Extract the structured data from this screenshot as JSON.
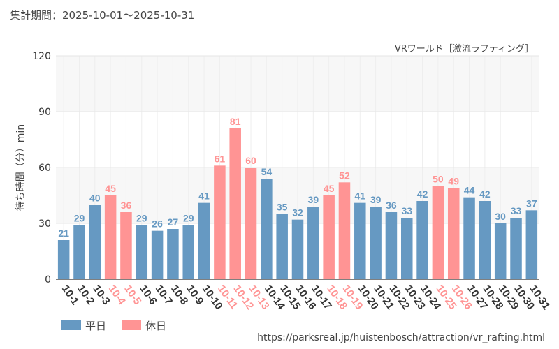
{
  "period_label": "集計期間：2025-10-01～2025-10-31",
  "attraction_label": "VRワールド［激流ラフティング］",
  "source_url": "https://parksreal.jp/huistenbosch/attraction/vr_rafting.html",
  "colors": {
    "weekday": "#6699c2",
    "holiday": "#ff9494",
    "grid": "#e6e6e6",
    "band": "#f7f7f7"
  },
  "chart_data": {
    "type": "bar",
    "title": "",
    "ylabel": "待ち時間（分）min",
    "xlabel": "",
    "ylim": [
      0,
      120
    ],
    "yticks": [
      0,
      30,
      60,
      90,
      120
    ],
    "categories": [
      "10-1",
      "10-2",
      "10-3",
      "10-4",
      "10-5",
      "10-6",
      "10-7",
      "10-8",
      "10-9",
      "10-10",
      "10-11",
      "10-12",
      "10-13",
      "10-14",
      "10-15",
      "10-16",
      "10-17",
      "10-18",
      "10-19",
      "10-20",
      "10-21",
      "10-22",
      "10-23",
      "10-24",
      "10-25",
      "10-26",
      "10-27",
      "10-28",
      "10-29",
      "10-30",
      "10-31"
    ],
    "values": [
      21,
      29,
      40,
      45,
      36,
      29,
      26,
      27,
      29,
      41,
      61,
      81,
      60,
      54,
      35,
      32,
      39,
      45,
      52,
      41,
      39,
      36,
      33,
      42,
      50,
      49,
      44,
      42,
      30,
      33,
      37
    ],
    "day_type": [
      "weekday",
      "weekday",
      "weekday",
      "holiday",
      "holiday",
      "weekday",
      "weekday",
      "weekday",
      "weekday",
      "weekday",
      "holiday",
      "holiday",
      "holiday",
      "weekday",
      "weekday",
      "weekday",
      "weekday",
      "holiday",
      "holiday",
      "weekday",
      "weekday",
      "weekday",
      "weekday",
      "weekday",
      "holiday",
      "holiday",
      "weekday",
      "weekday",
      "weekday",
      "weekday",
      "weekday"
    ],
    "legend": [
      {
        "key": "weekday",
        "label": "平日"
      },
      {
        "key": "holiday",
        "label": "休日"
      }
    ],
    "legend_position": "bottom-left"
  }
}
